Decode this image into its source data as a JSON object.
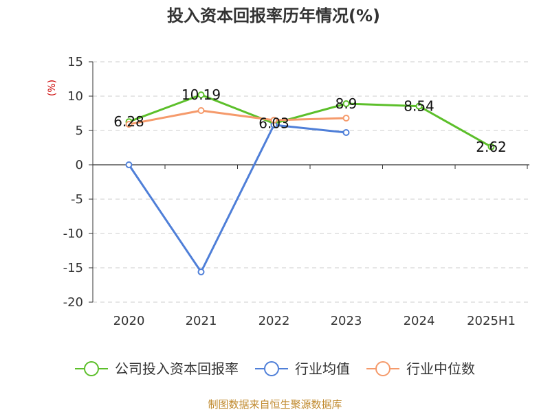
{
  "chart_data": {
    "type": "line",
    "title": "投入资本回报率历年情况(%)",
    "ylabel": "(%)",
    "categories": [
      "2020",
      "2021",
      "2022",
      "2023",
      "2024",
      "2025H1"
    ],
    "ylim": [
      -20,
      15
    ],
    "yticks": [
      15,
      10,
      5,
      0,
      -5,
      -10,
      -15,
      -20
    ],
    "grid": true,
    "legend_position": "bottom",
    "series": [
      {
        "name": "公司投入资本回报率",
        "color": "#5cbf2a",
        "values": [
          6.28,
          10.19,
          6.03,
          8.9,
          8.54,
          2.62
        ],
        "labels": [
          "6.28",
          "10.19",
          "6.03",
          "8.9",
          "8.54",
          "2.62"
        ]
      },
      {
        "name": "行业均值",
        "color": "#4f7fd8",
        "values": [
          0.0,
          -15.6,
          5.8,
          4.7,
          null,
          null
        ]
      },
      {
        "name": "行业中位数",
        "color": "#f59a6b",
        "values": [
          5.9,
          7.9,
          6.5,
          6.8,
          null,
          null
        ]
      }
    ]
  },
  "source": "制图数据来自恒生聚源数据库"
}
